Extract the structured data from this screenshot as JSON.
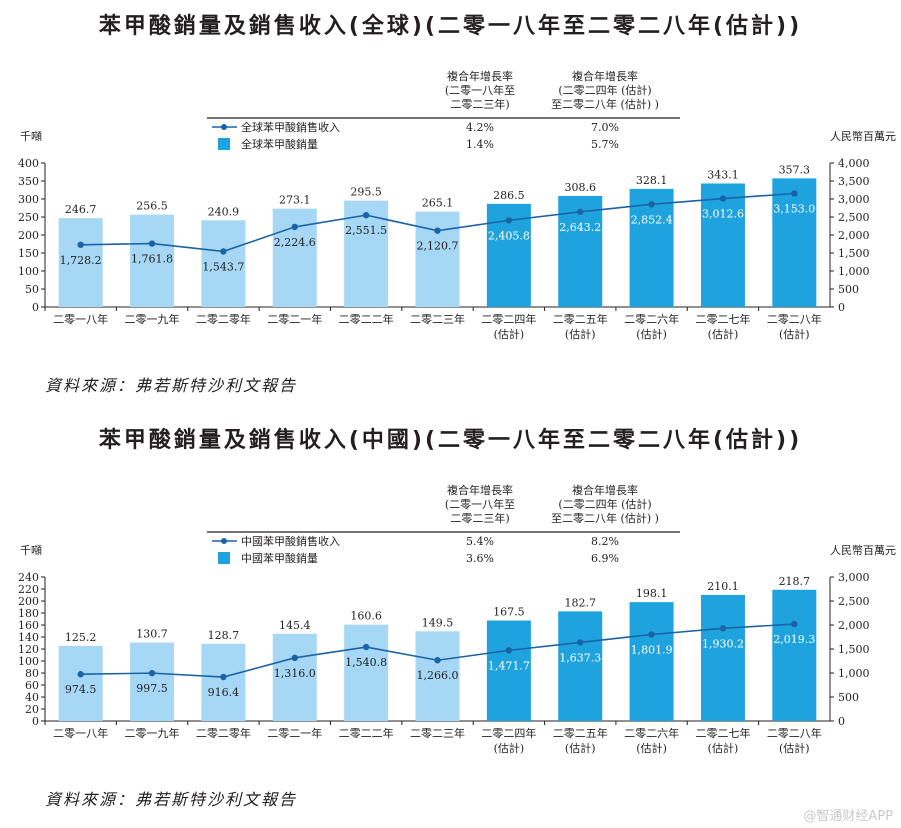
{
  "watermark": "@智通财经APP",
  "chart_data": [
    {
      "type": "bar",
      "title": "苯甲酸銷量及銷售收入(全球)(二零一八年至二零二八年(估計))",
      "categories": [
        "二零一八年",
        "二零一九年",
        "二零二零年",
        "二零二一年",
        "二零二二年",
        "二零二三年",
        "二零二四年",
        "二零二五年",
        "二零二六年",
        "二零二七年",
        "二零二八年"
      ],
      "category_sub": [
        "",
        "",
        "",
        "",
        "",
        "",
        "(估計)",
        "(估計)",
        "(估計)",
        "(估計)",
        "(估計)"
      ],
      "forecast_from_index": 6,
      "ylabel_left": "千噸",
      "ylabel_right": "人民幣百萬元",
      "ylim_left": [
        0,
        400
      ],
      "yticks_left": [
        0,
        50,
        100,
        150,
        200,
        250,
        300,
        350,
        400
      ],
      "ylim_right": [
        0,
        4000
      ],
      "yticks_right": [
        0,
        500,
        1000,
        1500,
        2000,
        2500,
        3000,
        3500,
        4000
      ],
      "yticks_right_labels": [
        "0",
        "500",
        "1,000",
        "1,500",
        "2,000",
        "2,500",
        "3,000",
        "3,500",
        "4,000"
      ],
      "series": [
        {
          "name": "全球苯甲酸銷量",
          "kind": "bar",
          "axis": "left",
          "values": [
            246.7,
            256.5,
            240.9,
            273.1,
            295.5,
            265.1,
            286.5,
            308.6,
            328.1,
            343.1,
            357.3
          ],
          "labels": [
            "246.7",
            "256.5",
            "240.9",
            "273.1",
            "295.5",
            "265.1",
            "286.5",
            "308.6",
            "328.1",
            "343.1",
            "357.3"
          ]
        },
        {
          "name": "全球苯甲酸銷售收入",
          "kind": "line",
          "axis": "right",
          "values": [
            1728.2,
            1761.8,
            1543.7,
            2224.6,
            2551.5,
            2120.7,
            2405.8,
            2643.2,
            2852.4,
            3012.6,
            3153.0
          ],
          "labels": [
            "1,728.2",
            "1,761.8",
            "1,543.7",
            "2,224.6",
            "2,551.5",
            "2,120.7",
            "2,405.8",
            "2,643.2",
            "2,852.4",
            "3,012.6",
            "3,153.0"
          ]
        }
      ],
      "cagr_table": {
        "headers": [
          [
            "複合年增長率",
            "(二零一八年至",
            "二零二三年)"
          ],
          [
            "複合年增長率",
            "(二零二四年 (估計)",
            "至二零二八年 (估計) )"
          ]
        ],
        "rows": [
          {
            "label": "全球苯甲酸銷售收入",
            "values": [
              "4.2%",
              "7.0%"
            ]
          },
          {
            "label": "全球苯甲酸銷量",
            "values": [
              "1.4%",
              "5.7%"
            ]
          }
        ]
      },
      "source": "資料來源：弗若斯特沙利文報告",
      "colors": {
        "bar_hist": "#a6d8f5",
        "bar_fcst": "#1fa3de",
        "line": "#1b63a7",
        "axis": "#231f20"
      }
    },
    {
      "type": "bar",
      "title": "苯甲酸銷量及銷售收入(中國)(二零一八年至二零二八年(估計))",
      "categories": [
        "二零一八年",
        "二零一九年",
        "二零二零年",
        "二零二一年",
        "二零二二年",
        "二零二三年",
        "二零二四年",
        "二零二五年",
        "二零二六年",
        "二零二七年",
        "二零二八年"
      ],
      "category_sub": [
        "",
        "",
        "",
        "",
        "",
        "",
        "(估計)",
        "(估計)",
        "(估計)",
        "(估計)",
        "(估計)"
      ],
      "forecast_from_index": 6,
      "ylabel_left": "千噸",
      "ylabel_right": "人民幣百萬元",
      "ylim_left": [
        0,
        240
      ],
      "yticks_left": [
        0,
        20,
        40,
        60,
        80,
        100,
        120,
        140,
        160,
        180,
        200,
        220,
        240
      ],
      "ylim_right": [
        0,
        3000
      ],
      "yticks_right": [
        0,
        500,
        1000,
        1500,
        2000,
        2500,
        3000
      ],
      "yticks_right_labels": [
        "0",
        "500",
        "1,000",
        "1,500",
        "2,000",
        "2,500",
        "3,000"
      ],
      "series": [
        {
          "name": "中國苯甲酸銷量",
          "kind": "bar",
          "axis": "left",
          "values": [
            125.2,
            130.7,
            128.7,
            145.4,
            160.6,
            149.5,
            167.5,
            182.7,
            198.1,
            210.1,
            218.7
          ],
          "labels": [
            "125.2",
            "130.7",
            "128.7",
            "145.4",
            "160.6",
            "149.5",
            "167.5",
            "182.7",
            "198.1",
            "210.1",
            "218.7"
          ]
        },
        {
          "name": "中國苯甲酸銷售收入",
          "kind": "line",
          "axis": "right",
          "values": [
            974.5,
            997.5,
            916.4,
            1316.0,
            1540.8,
            1266.0,
            1471.7,
            1637.3,
            1801.9,
            1930.2,
            2019.3
          ],
          "labels": [
            "974.5",
            "997.5",
            "916.4",
            "1,316.0",
            "1,540.8",
            "1,266.0",
            "1,471.7",
            "1,637.3",
            "1,801.9",
            "1,930.2",
            "2,019.3"
          ]
        }
      ],
      "cagr_table": {
        "headers": [
          [
            "複合年增長率",
            "(二零一八年至",
            "二零二三年)"
          ],
          [
            "複合年增長率",
            "(二零二四年 (估計)",
            "至二零二八年 (估計) )"
          ]
        ],
        "rows": [
          {
            "label": "中國苯甲酸銷售收入",
            "values": [
              "5.4%",
              "8.2%"
            ]
          },
          {
            "label": "中國苯甲酸銷量",
            "values": [
              "3.6%",
              "6.9%"
            ]
          }
        ]
      },
      "source": "資料來源：弗若斯特沙利文報告",
      "colors": {
        "bar_hist": "#a6d8f5",
        "bar_fcst": "#1fa3de",
        "line": "#1b63a7",
        "axis": "#231f20"
      }
    }
  ]
}
